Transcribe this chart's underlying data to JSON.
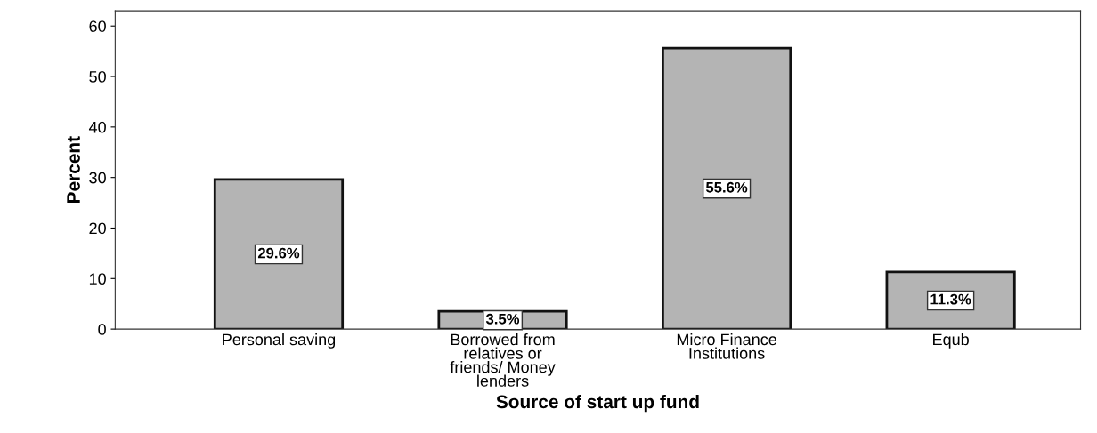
{
  "chart_data": {
    "type": "bar",
    "xlabel": "Source of start up fund",
    "ylabel": "Percent",
    "categories": [
      "Personal saving",
      "Borrowed from\nrelatives or\nfriends/ Money\nlenders",
      "Micro Finance\nInstitutions",
      "Equb"
    ],
    "values": [
      29.6,
      3.5,
      55.6,
      11.3
    ],
    "value_labels": [
      "29.6%",
      "3.5%",
      "55.6%",
      "11.3%"
    ],
    "color": "#b4b4b4",
    "ylim": [
      0,
      63
    ],
    "yticks": [
      0,
      10,
      20,
      30,
      40,
      50,
      60
    ],
    "grid": false,
    "legend": false
  }
}
